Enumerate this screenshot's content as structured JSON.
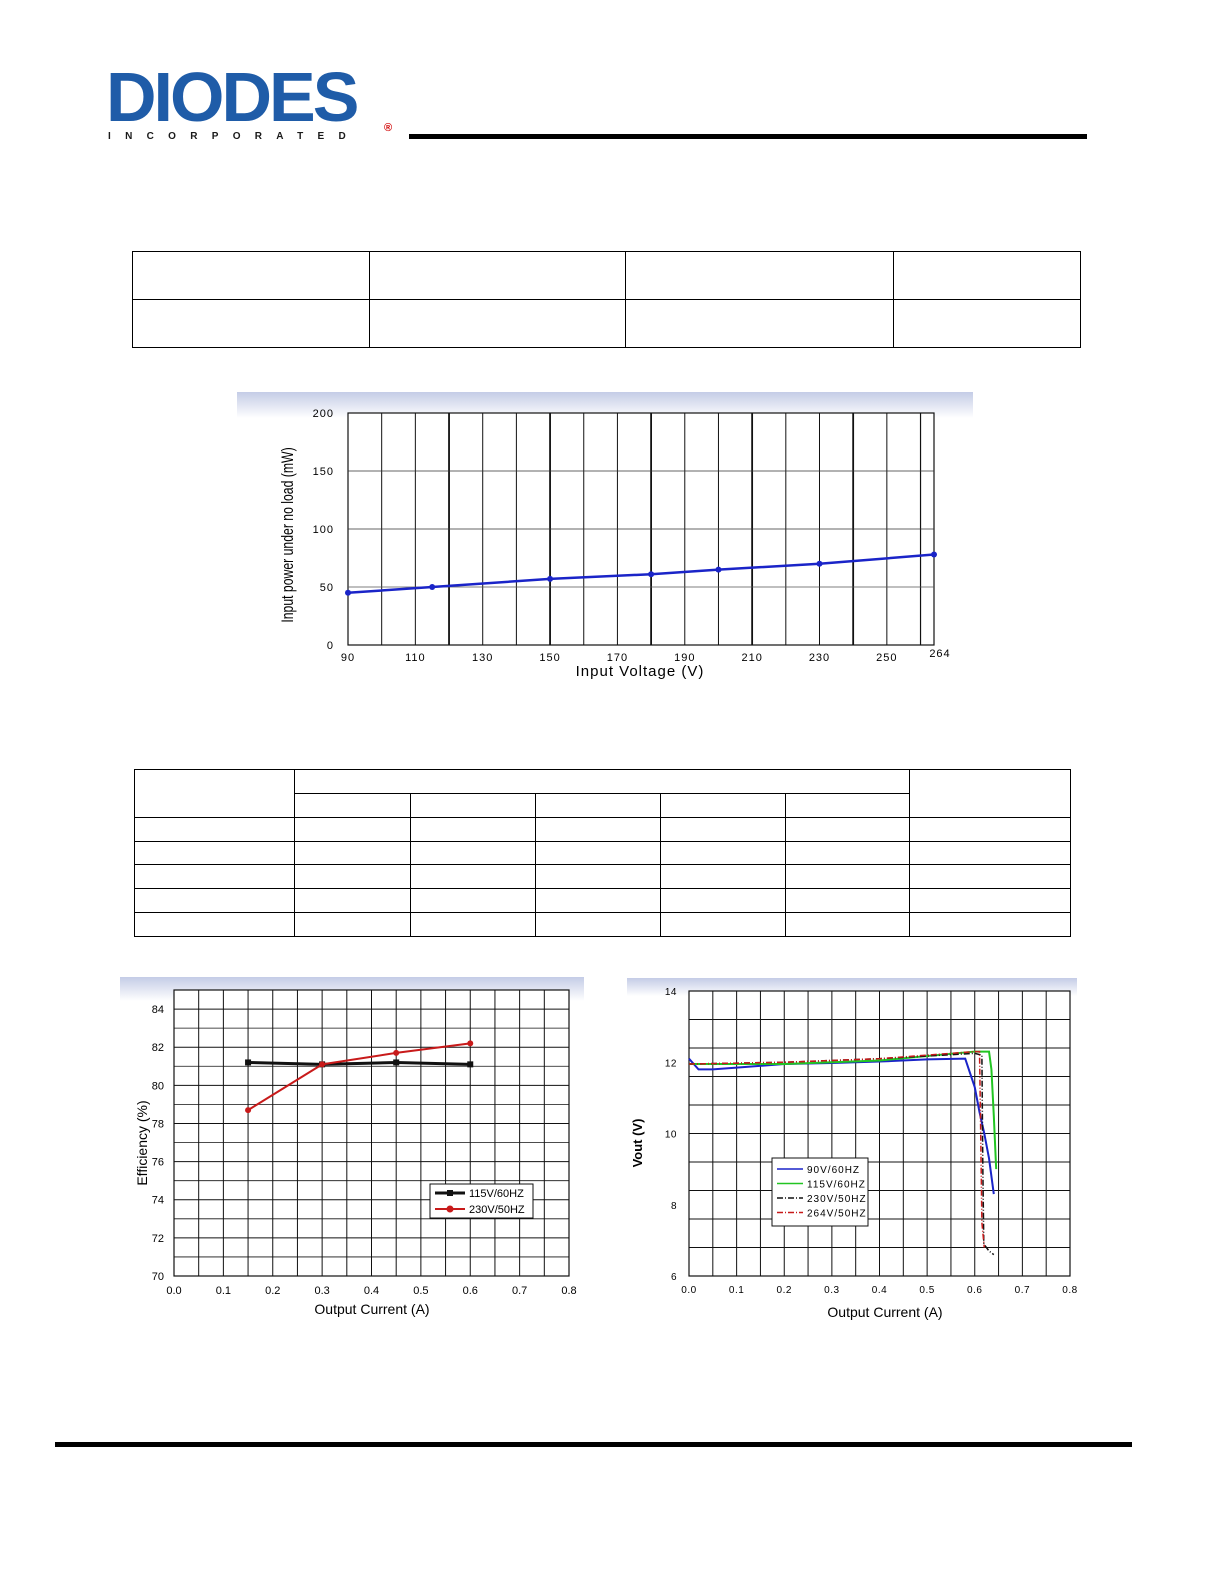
{
  "header": {
    "logo_brand": "DIODES",
    "logo_sub": "INCORPORATED",
    "logo_reg": "®"
  },
  "colors": {
    "brand_blue": "#1f5ca8",
    "line_blue": "#1a24c8",
    "red": "#c81a1a",
    "green": "#22c522",
    "black": "#111111"
  },
  "chart_data": [
    {
      "type": "line",
      "xlabel": "Input Voltage (V)",
      "ylabel": "Input power under no load (mW)",
      "xlim": [
        90,
        264
      ],
      "ylim": [
        0,
        200
      ],
      "x_ticks": [
        "90",
        "110",
        "130",
        "150",
        "170",
        "190",
        "210",
        "230",
        "250",
        "264"
      ],
      "y_ticks": [
        "0",
        "50",
        "100",
        "150",
        "200"
      ],
      "grid": true,
      "series": [
        {
          "x": [
            90,
            115,
            150,
            180,
            200,
            230,
            264
          ],
          "values": [
            45,
            50,
            57,
            61,
            65,
            70,
            78
          ]
        }
      ]
    },
    {
      "type": "line",
      "xlabel": "Output Current (A)",
      "ylabel": "Efficiency (%)",
      "xlim": [
        0.0,
        0.8
      ],
      "ylim": [
        70,
        85
      ],
      "x_ticks": [
        "0.0",
        "0.1",
        "0.2",
        "0.3",
        "0.4",
        "0.5",
        "0.6",
        "0.7",
        "0.8"
      ],
      "y_ticks": [
        "70",
        "72",
        "74",
        "76",
        "78",
        "80",
        "82",
        "84"
      ],
      "grid": true,
      "legend": "bottom-right",
      "series": [
        {
          "name": "115V/60HZ",
          "x": [
            0.15,
            0.3,
            0.45,
            0.6
          ],
          "values": [
            81.2,
            81.1,
            81.2,
            81.1
          ]
        },
        {
          "name": "230V/50HZ",
          "x": [
            0.15,
            0.3,
            0.45,
            0.6
          ],
          "values": [
            78.7,
            81.1,
            81.7,
            82.2
          ]
        }
      ]
    },
    {
      "type": "line",
      "xlabel": "Output Current (A)",
      "ylabel": "Vout (V)",
      "xlim": [
        0.0,
        0.8
      ],
      "ylim": [
        6,
        14
      ],
      "x_ticks": [
        "0.0",
        "0.1",
        "0.2",
        "0.3",
        "0.4",
        "0.5",
        "0.6",
        "0.7",
        "0.8"
      ],
      "y_ticks": [
        "6",
        "8",
        "10",
        "12",
        "14"
      ],
      "grid": true,
      "legend": "bottom-left",
      "series": [
        {
          "name": "90V/60HZ",
          "x": [
            0.0,
            0.02,
            0.05,
            0.1,
            0.2,
            0.3,
            0.4,
            0.5,
            0.58,
            0.6,
            0.61,
            0.62,
            0.63,
            0.64
          ],
          "values": [
            12.1,
            11.8,
            11.8,
            11.85,
            11.95,
            11.98,
            12.02,
            12.08,
            12.1,
            11.3,
            10.6,
            10.0,
            9.3,
            8.3
          ]
        },
        {
          "name": "115V/60HZ",
          "x": [
            0.0,
            0.2,
            0.4,
            0.6,
            0.63,
            0.635,
            0.64,
            0.645
          ],
          "values": [
            11.95,
            11.95,
            12.05,
            12.3,
            12.3,
            11.8,
            10.5,
            9.0
          ]
        },
        {
          "name": "230V/50HZ",
          "x": [
            0.0,
            0.2,
            0.4,
            0.6,
            0.615,
            0.617,
            0.619,
            0.63,
            0.64
          ],
          "values": [
            11.95,
            12.0,
            12.1,
            12.25,
            12.2,
            9.0,
            6.9,
            6.7,
            6.6
          ]
        },
        {
          "name": "264V/50HZ",
          "x": [
            0.0,
            0.2,
            0.4,
            0.6,
            0.61,
            0.612,
            0.615,
            0.62
          ],
          "values": [
            11.95,
            12.0,
            12.1,
            12.3,
            12.3,
            10.5,
            7.5,
            6.8
          ]
        }
      ]
    }
  ]
}
